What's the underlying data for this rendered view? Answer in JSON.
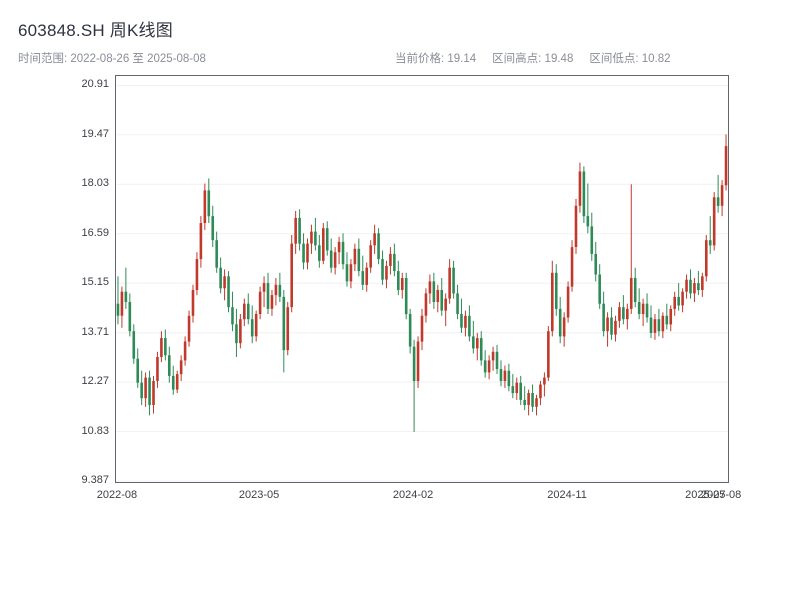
{
  "header": {
    "title": "603848.SH 周K线图",
    "subtitle_left": "时间范围: 2022-08-26 至 2025-08-08",
    "info": {
      "current_price": "当前价格: 19.14",
      "range_high": "区间高点: 19.48",
      "range_low": "区间低点: 10.82"
    }
  },
  "chart_data": {
    "type": "candlestick",
    "title": "603848.SH 周K线图",
    "symbol": "603848.SH",
    "interval": "weekly",
    "start_date": "2022-08-26",
    "end_date": "2025-08-08",
    "interval_days": 7,
    "current_price": 19.14,
    "range_high": 19.48,
    "range_low": 10.82,
    "up_color": "#c0392b",
    "down_color": "#2e8b57",
    "grid_color": "#f1f1f3",
    "ylim": [
      9.36,
      21.18
    ],
    "y_tick_values": [
      9.387,
      10.827,
      12.267,
      13.707,
      15.147,
      16.587,
      18.027,
      19.467,
      20.907
    ],
    "y_tick_labels": [
      "9.387",
      "10.83",
      "12.27",
      "13.71",
      "15.15",
      "16.59",
      "18.03",
      "19.47",
      "20.91"
    ],
    "x_ticks": [
      {
        "index": 0,
        "label": "2022-08"
      },
      {
        "index": 36,
        "label": "2023-05"
      },
      {
        "index": 75,
        "label": "2024-02"
      },
      {
        "index": 114,
        "label": "2024-11"
      },
      {
        "index": 149,
        "label": "2025-07"
      },
      {
        "index": 153,
        "label": "2025-08"
      }
    ],
    "ohlc_columns": [
      "open",
      "high",
      "low",
      "close"
    ],
    "ohlc": [
      [
        14.55,
        15.35,
        13.95,
        14.2
      ],
      [
        14.2,
        15.05,
        13.85,
        14.9
      ],
      [
        14.9,
        15.6,
        14.4,
        14.6
      ],
      [
        14.6,
        14.85,
        13.6,
        13.75
      ],
      [
        13.75,
        13.95,
        12.8,
        12.95
      ],
      [
        12.95,
        13.25,
        12.1,
        12.25
      ],
      [
        12.25,
        12.6,
        11.6,
        11.8
      ],
      [
        11.8,
        12.55,
        11.55,
        12.4
      ],
      [
        12.4,
        12.6,
        11.3,
        11.6
      ],
      [
        11.6,
        12.45,
        11.35,
        12.3
      ],
      [
        12.3,
        13.15,
        12.1,
        13.0
      ],
      [
        13.0,
        13.75,
        12.85,
        13.55
      ],
      [
        13.55,
        13.8,
        12.9,
        13.05
      ],
      [
        13.05,
        13.3,
        12.25,
        12.45
      ],
      [
        12.45,
        12.75,
        11.9,
        12.05
      ],
      [
        12.05,
        12.6,
        11.95,
        12.5
      ],
      [
        12.5,
        13.05,
        12.3,
        12.9
      ],
      [
        12.9,
        13.6,
        12.75,
        13.45
      ],
      [
        13.45,
        14.35,
        13.3,
        14.2
      ],
      [
        14.2,
        15.1,
        14.0,
        14.95
      ],
      [
        14.95,
        16.05,
        14.8,
        15.85
      ],
      [
        15.85,
        17.1,
        15.6,
        16.9
      ],
      [
        16.9,
        18.05,
        16.7,
        17.85
      ],
      [
        17.85,
        18.2,
        16.9,
        17.1
      ],
      [
        17.1,
        17.4,
        16.2,
        16.4
      ],
      [
        16.4,
        16.65,
        15.45,
        15.6
      ],
      [
        15.6,
        15.9,
        14.85,
        15.0
      ],
      [
        15.0,
        15.55,
        14.65,
        15.35
      ],
      [
        15.35,
        15.5,
        14.3,
        14.45
      ],
      [
        14.45,
        14.9,
        13.75,
        13.95
      ],
      [
        13.95,
        14.4,
        13.0,
        13.4
      ],
      [
        13.4,
        14.25,
        13.25,
        14.1
      ],
      [
        14.1,
        14.7,
        13.9,
        14.55
      ],
      [
        14.55,
        14.85,
        13.95,
        14.1
      ],
      [
        14.1,
        14.5,
        13.4,
        13.6
      ],
      [
        13.6,
        14.35,
        13.45,
        14.25
      ],
      [
        14.25,
        15.05,
        14.1,
        14.9
      ],
      [
        14.9,
        15.35,
        14.45,
        15.15
      ],
      [
        15.15,
        15.45,
        14.25,
        14.4
      ],
      [
        14.4,
        14.95,
        14.2,
        14.8
      ],
      [
        14.8,
        15.3,
        14.5,
        15.1
      ],
      [
        15.1,
        15.45,
        14.6,
        14.75
      ],
      [
        14.75,
        14.95,
        12.55,
        13.2
      ],
      [
        13.2,
        14.6,
        13.05,
        14.45
      ],
      [
        14.45,
        16.55,
        14.3,
        16.3
      ],
      [
        16.3,
        17.25,
        16.0,
        17.05
      ],
      [
        17.05,
        17.3,
        16.1,
        16.3
      ],
      [
        16.3,
        16.6,
        15.55,
        15.75
      ],
      [
        15.75,
        16.45,
        15.55,
        16.3
      ],
      [
        16.3,
        16.85,
        16.0,
        16.65
      ],
      [
        16.65,
        17.05,
        16.1,
        16.25
      ],
      [
        16.25,
        16.55,
        15.6,
        15.8
      ],
      [
        15.8,
        16.9,
        15.7,
        16.75
      ],
      [
        16.75,
        16.95,
        15.95,
        16.1
      ],
      [
        16.1,
        16.45,
        15.45,
        15.6
      ],
      [
        15.6,
        16.2,
        15.4,
        16.05
      ],
      [
        16.05,
        16.5,
        15.7,
        16.35
      ],
      [
        16.35,
        16.6,
        15.55,
        15.7
      ],
      [
        15.7,
        16.05,
        15.05,
        15.2
      ],
      [
        15.2,
        15.85,
        15.0,
        15.7
      ],
      [
        15.7,
        16.3,
        15.5,
        16.15
      ],
      [
        16.15,
        16.45,
        15.35,
        15.5
      ],
      [
        15.5,
        15.95,
        14.95,
        15.1
      ],
      [
        15.1,
        15.75,
        14.9,
        15.6
      ],
      [
        15.6,
        16.4,
        15.45,
        16.25
      ],
      [
        16.25,
        16.85,
        16.0,
        16.6
      ],
      [
        16.6,
        16.75,
        15.7,
        15.85
      ],
      [
        15.85,
        16.1,
        15.1,
        15.25
      ],
      [
        15.25,
        15.8,
        15.0,
        15.65
      ],
      [
        15.65,
        16.2,
        15.4,
        16.0
      ],
      [
        16.0,
        16.3,
        15.35,
        15.5
      ],
      [
        15.5,
        15.8,
        14.8,
        14.95
      ],
      [
        14.95,
        15.45,
        14.7,
        15.3
      ],
      [
        15.3,
        15.45,
        14.1,
        14.25
      ],
      [
        14.25,
        14.4,
        13.1,
        13.3
      ],
      [
        13.3,
        13.5,
        10.82,
        12.3
      ],
      [
        12.3,
        13.6,
        12.1,
        13.45
      ],
      [
        13.45,
        14.4,
        13.2,
        14.2
      ],
      [
        14.2,
        15.0,
        14.0,
        14.85
      ],
      [
        14.85,
        15.4,
        14.55,
        15.2
      ],
      [
        15.2,
        15.45,
        14.4,
        14.6
      ],
      [
        14.6,
        15.1,
        14.3,
        14.95
      ],
      [
        14.95,
        15.3,
        14.2,
        14.35
      ],
      [
        14.35,
        14.85,
        13.9,
        14.7
      ],
      [
        14.7,
        15.85,
        14.55,
        15.6
      ],
      [
        15.6,
        15.8,
        14.7,
        14.85
      ],
      [
        14.85,
        15.1,
        14.1,
        14.25
      ],
      [
        14.25,
        14.7,
        13.7,
        13.85
      ],
      [
        13.85,
        14.35,
        13.6,
        14.2
      ],
      [
        14.2,
        14.5,
        13.45,
        13.6
      ],
      [
        13.6,
        14.05,
        13.1,
        13.25
      ],
      [
        13.25,
        13.7,
        12.9,
        13.55
      ],
      [
        13.55,
        13.75,
        12.75,
        12.9
      ],
      [
        12.9,
        13.2,
        12.4,
        12.55
      ],
      [
        12.55,
        13.05,
        12.35,
        12.9
      ],
      [
        12.9,
        13.3,
        12.6,
        13.15
      ],
      [
        13.15,
        13.35,
        12.5,
        12.65
      ],
      [
        12.65,
        12.9,
        12.15,
        12.3
      ],
      [
        12.3,
        12.75,
        12.1,
        12.6
      ],
      [
        12.6,
        12.8,
        12.0,
        12.15
      ],
      [
        12.15,
        12.5,
        11.8,
        11.95
      ],
      [
        11.95,
        12.4,
        11.75,
        12.25
      ],
      [
        12.25,
        12.45,
        11.6,
        11.75
      ],
      [
        11.75,
        12.15,
        11.45,
        11.6
      ],
      [
        11.6,
        12.05,
        11.3,
        11.95
      ],
      [
        11.95,
        12.2,
        11.4,
        11.55
      ],
      [
        11.55,
        11.9,
        11.3,
        11.8
      ],
      [
        11.8,
        12.3,
        11.6,
        12.2
      ],
      [
        12.2,
        12.55,
        11.85,
        12.4
      ],
      [
        12.4,
        13.9,
        12.3,
        13.75
      ],
      [
        13.75,
        15.8,
        13.6,
        15.45
      ],
      [
        15.45,
        15.7,
        14.2,
        14.4
      ],
      [
        14.4,
        14.75,
        13.4,
        13.6
      ],
      [
        13.6,
        14.3,
        13.3,
        14.15
      ],
      [
        14.15,
        15.2,
        14.0,
        15.05
      ],
      [
        15.05,
        16.4,
        14.9,
        16.2
      ],
      [
        16.2,
        17.6,
        16.0,
        17.4
      ],
      [
        17.4,
        18.66,
        17.2,
        18.4
      ],
      [
        18.4,
        18.55,
        16.9,
        17.1
      ],
      [
        17.1,
        18.05,
        16.6,
        16.8
      ],
      [
        16.8,
        17.2,
        15.8,
        16.0
      ],
      [
        16.0,
        16.35,
        15.2,
        15.4
      ],
      [
        15.4,
        15.7,
        14.4,
        14.55
      ],
      [
        14.55,
        14.9,
        13.6,
        13.75
      ],
      [
        13.75,
        14.3,
        13.3,
        14.15
      ],
      [
        14.15,
        14.45,
        13.5,
        13.65
      ],
      [
        13.65,
        14.2,
        13.45,
        14.05
      ],
      [
        14.05,
        14.6,
        13.85,
        14.45
      ],
      [
        14.45,
        14.8,
        13.95,
        14.1
      ],
      [
        14.1,
        14.55,
        13.8,
        14.4
      ],
      [
        14.4,
        18.03,
        14.25,
        15.3
      ],
      [
        15.3,
        15.6,
        14.45,
        14.6
      ],
      [
        14.6,
        15.0,
        14.1,
        14.25
      ],
      [
        14.25,
        14.7,
        13.9,
        14.55
      ],
      [
        14.55,
        14.85,
        14.0,
        14.15
      ],
      [
        14.15,
        14.5,
        13.55,
        13.7
      ],
      [
        13.7,
        14.25,
        13.5,
        14.1
      ],
      [
        14.1,
        14.4,
        13.6,
        13.75
      ],
      [
        13.75,
        14.3,
        13.55,
        14.2
      ],
      [
        14.2,
        14.55,
        13.8,
        13.95
      ],
      [
        13.95,
        14.5,
        13.75,
        14.4
      ],
      [
        14.4,
        14.9,
        14.2,
        14.75
      ],
      [
        14.75,
        15.15,
        14.35,
        14.5
      ],
      [
        14.5,
        15.0,
        14.3,
        14.9
      ],
      [
        14.9,
        15.4,
        14.7,
        15.25
      ],
      [
        15.25,
        15.55,
        14.7,
        14.85
      ],
      [
        14.85,
        15.3,
        14.6,
        15.15
      ],
      [
        15.15,
        15.5,
        14.8,
        14.95
      ],
      [
        14.95,
        15.45,
        14.75,
        15.35
      ],
      [
        15.35,
        16.55,
        15.2,
        16.4
      ],
      [
        16.4,
        17.1,
        16.0,
        16.25
      ],
      [
        16.25,
        17.8,
        16.1,
        17.65
      ],
      [
        17.65,
        18.3,
        17.2,
        17.4
      ],
      [
        17.4,
        18.15,
        17.1,
        18.0
      ],
      [
        18.0,
        19.48,
        17.85,
        19.14
      ]
    ]
  }
}
